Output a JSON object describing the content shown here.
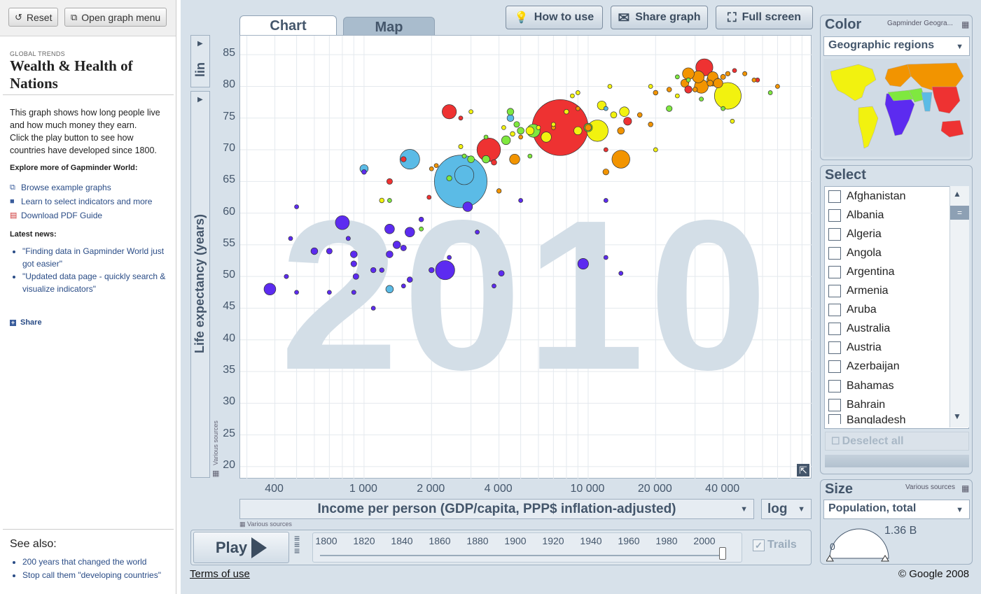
{
  "sidebar": {
    "reset_label": "Reset",
    "menu_label": "Open graph menu",
    "global_trends": "GLOBAL TRENDS",
    "title_line1": "Wealth & Health of",
    "title_line2": "Nations",
    "desc_lines": [
      "This graph shows how long people live",
      "and how much money they earn.",
      "Click the play button to see how",
      "countries have developed since 1800."
    ],
    "explore": "Explore more of Gapminder World:",
    "links": [
      "Browse example graphs",
      "Learn to select indicators and more",
      "Download PDF Guide"
    ],
    "latest_news": "Latest news:",
    "news": [
      "\"Finding data in Gapminder World just got easier\"",
      "\"Updated data page - quickly search & visualize indicators\""
    ],
    "share": "Share",
    "see_also": "See also:",
    "see_also_links": [
      "200 years that changed the world",
      "Stop call them \"developing countries\""
    ]
  },
  "main": {
    "tabs": [
      {
        "label": "Chart"
      },
      {
        "label": "Map"
      }
    ],
    "buttons": {
      "how_to_use": "How to use",
      "share_graph": "Share graph",
      "full_screen": "Full screen"
    },
    "y_scale": "lin",
    "x_indicator": "Income per person (GDP/capita, PPP$ inflation-adjusted)",
    "x_scale": "log",
    "various_sources": "Various sources",
    "play": "Play",
    "trails": "Trails",
    "terms": "Terms of use",
    "copyright": "© Google 2008",
    "year_ticks": [
      "1800",
      "1820",
      "1840",
      "1860",
      "1880",
      "1900",
      "1920",
      "1940",
      "1960",
      "1980",
      "2000"
    ]
  },
  "right": {
    "color_title": "Color",
    "color_source": "Gapminder Geogra...",
    "color_indicator": "Geographic regions",
    "select_title": "Select",
    "countries": [
      "Afghanistan",
      "Albania",
      "Algeria",
      "Angola",
      "Argentina",
      "Armenia",
      "Aruba",
      "Australia",
      "Austria",
      "Azerbaijan",
      "Bahamas",
      "Bahrain",
      "Bangladesh"
    ],
    "deselect_all": "Deselect all",
    "size_title": "Size",
    "size_source": "Various sources",
    "size_indicator": "Population, total",
    "size_max": "1.36 B",
    "size_min": "0"
  },
  "chart_data": {
    "type": "scatter",
    "year_watermark": "2010",
    "xlabel": "Income per person (GDP/capita, PPP$ inflation-adjusted)",
    "ylabel": "Life expectancy (years)",
    "x_scale": "log",
    "xlim": [
      280,
      100000
    ],
    "ylim": [
      18,
      88
    ],
    "x_ticks": [
      {
        "v": 400,
        "label": "400"
      },
      {
        "v": 1000,
        "label": "1 000"
      },
      {
        "v": 2000,
        "label": "2 000"
      },
      {
        "v": 4000,
        "label": "4 000"
      },
      {
        "v": 10000,
        "label": "10 000"
      },
      {
        "v": 20000,
        "label": "20 000"
      },
      {
        "v": 40000,
        "label": "40 000"
      }
    ],
    "y_ticks": [
      20,
      25,
      30,
      35,
      40,
      45,
      50,
      55,
      60,
      65,
      70,
      75,
      80,
      85
    ],
    "region_colors": {
      "africa": "#5c2bf0",
      "south_asia": "#5bbbe6",
      "east_asia": "#ee3232",
      "europe": "#f29400",
      "america": "#f2f20f",
      "middle_east": "#7fe83f"
    },
    "points": [
      {
        "r": "south_asia",
        "x": 2700,
        "y": 65,
        "p": 1200
      },
      {
        "r": "east_asia",
        "x": 7500,
        "y": 73.5,
        "p": 1360
      },
      {
        "r": "america",
        "x": 42000,
        "y": 78.5,
        "p": 310
      },
      {
        "r": "east_asia",
        "x": 3600,
        "y": 70,
        "p": 240
      },
      {
        "r": "south_asia",
        "x": 1600,
        "y": 68.5,
        "p": 170
      },
      {
        "r": "america",
        "x": 11000,
        "y": 73,
        "p": 200
      },
      {
        "r": "europe",
        "x": 14000,
        "y": 68.5,
        "p": 140
      },
      {
        "r": "africa",
        "x": 2300,
        "y": 51,
        "p": 160
      },
      {
        "r": "south_asia",
        "x": 2800,
        "y": 66,
        "p": 160
      },
      {
        "r": "east_asia",
        "x": 33000,
        "y": 83,
        "p": 127
      },
      {
        "r": "east_asia",
        "x": 2400,
        "y": 76,
        "p": 88
      },
      {
        "r": "africa",
        "x": 800,
        "y": 58.5,
        "p": 85
      },
      {
        "r": "africa",
        "x": 9500,
        "y": 52,
        "p": 50
      },
      {
        "r": "africa",
        "x": 1600,
        "y": 57,
        "p": 40
      },
      {
        "r": "africa",
        "x": 1300,
        "y": 57.5,
        "p": 40
      },
      {
        "r": "africa",
        "x": 380,
        "y": 48,
        "p": 60
      },
      {
        "r": "africa",
        "x": 2900,
        "y": 61,
        "p": 40
      },
      {
        "r": "middle_east",
        "x": 5700,
        "y": 73,
        "p": 75
      },
      {
        "r": "europe",
        "x": 32000,
        "y": 80,
        "p": 82
      },
      {
        "r": "europe",
        "x": 36000,
        "y": 81,
        "p": 62
      },
      {
        "r": "europe",
        "x": 31000,
        "y": 81.5,
        "p": 61
      },
      {
        "r": "europe",
        "x": 28000,
        "y": 82,
        "p": 60
      },
      {
        "r": "europe",
        "x": 4700,
        "y": 68.5,
        "p": 45
      },
      {
        "r": "america",
        "x": 6500,
        "y": 72,
        "p": 45
      },
      {
        "r": "america",
        "x": 5500,
        "y": 73,
        "p": 29
      },
      {
        "r": "america",
        "x": 14500,
        "y": 76,
        "p": 40
      },
      {
        "r": "america",
        "x": 11500,
        "y": 77,
        "p": 34
      },
      {
        "r": "america",
        "x": 13000,
        "y": 75.5,
        "p": 17
      },
      {
        "r": "america",
        "x": 9000,
        "y": 73,
        "p": 29
      },
      {
        "r": "middle_east",
        "x": 4300,
        "y": 71.5,
        "p": 34
      },
      {
        "r": "middle_east",
        "x": 5000,
        "y": 73,
        "p": 20
      },
      {
        "r": "middle_east",
        "x": 10000,
        "y": 73.5,
        "p": 32
      },
      {
        "r": "middle_east",
        "x": 3000,
        "y": 68.5,
        "p": 20
      },
      {
        "r": "middle_east",
        "x": 3500,
        "y": 68.5,
        "p": 25
      },
      {
        "r": "east_asia",
        "x": 3800,
        "y": 68,
        "p": 13
      },
      {
        "r": "east_asia",
        "x": 2700,
        "y": 75,
        "p": 3
      },
      {
        "r": "east_asia",
        "x": 1950,
        "y": 62.5,
        "p": 7
      },
      {
        "r": "east_asia",
        "x": 1300,
        "y": 65,
        "p": 14
      },
      {
        "r": "east_asia",
        "x": 1500,
        "y": 68.5,
        "p": 12
      },
      {
        "r": "east_asia",
        "x": 12000,
        "y": 70,
        "p": 4
      },
      {
        "r": "east_asia",
        "x": 57000,
        "y": 81,
        "p": 5
      },
      {
        "r": "east_asia",
        "x": 45000,
        "y": 82.5,
        "p": 7
      },
      {
        "r": "east_asia",
        "x": 28000,
        "y": 79.5,
        "p": 23
      },
      {
        "r": "east_asia",
        "x": 15000,
        "y": 74.5,
        "p": 28
      },
      {
        "r": "south_asia",
        "x": 1000,
        "y": 67,
        "p": 30
      },
      {
        "r": "south_asia",
        "x": 1300,
        "y": 48,
        "p": 25
      },
      {
        "r": "south_asia",
        "x": 4500,
        "y": 75,
        "p": 20
      },
      {
        "r": "south_asia",
        "x": 12000,
        "y": 76.5,
        "p": 0.4
      },
      {
        "r": "europe",
        "x": 38000,
        "y": 80.5,
        "p": 38
      },
      {
        "r": "europe",
        "x": 36000,
        "y": 81.5,
        "p": 47
      },
      {
        "r": "europe",
        "x": 27000,
        "y": 80.5,
        "p": 28
      },
      {
        "r": "europe",
        "x": 40000,
        "y": 81.5,
        "p": 11
      },
      {
        "r": "europe",
        "x": 35000,
        "y": 80.5,
        "p": 16
      },
      {
        "r": "europe",
        "x": 30000,
        "y": 79.5,
        "p": 10
      },
      {
        "r": "europe",
        "x": 55000,
        "y": 81,
        "p": 5
      },
      {
        "r": "europe",
        "x": 42000,
        "y": 82,
        "p": 9
      },
      {
        "r": "europe",
        "x": 50000,
        "y": 82,
        "p": 8
      },
      {
        "r": "europe",
        "x": 17000,
        "y": 75.5,
        "p": 10
      },
      {
        "r": "europe",
        "x": 20000,
        "y": 79,
        "p": 10
      },
      {
        "r": "europe",
        "x": 23000,
        "y": 79.5,
        "p": 10
      },
      {
        "r": "europe",
        "x": 19000,
        "y": 74,
        "p": 10
      },
      {
        "r": "europe",
        "x": 14000,
        "y": 73,
        "p": 20
      },
      {
        "r": "europe",
        "x": 10000,
        "y": 73.5,
        "p": 18
      },
      {
        "r": "europe",
        "x": 12000,
        "y": 66.5,
        "p": 16
      },
      {
        "r": "europe",
        "x": 4000,
        "y": 63.5,
        "p": 9
      },
      {
        "r": "europe",
        "x": 2000,
        "y": 67,
        "p": 4
      },
      {
        "r": "europe",
        "x": 2100,
        "y": 67.5,
        "p": 3
      },
      {
        "r": "europe",
        "x": 5000,
        "y": 72,
        "p": 3
      },
      {
        "r": "europe",
        "x": 7000,
        "y": 73.5,
        "p": 7
      },
      {
        "r": "europe",
        "x": 70000,
        "y": 80,
        "p": 2
      },
      {
        "r": "europe",
        "x": 9000,
        "y": 76.5,
        "p": 4
      },
      {
        "r": "america",
        "x": 4600,
        "y": 72.5,
        "p": 10
      },
      {
        "r": "america",
        "x": 8000,
        "y": 76,
        "p": 10
      },
      {
        "r": "america",
        "x": 9000,
        "y": 79,
        "p": 4
      },
      {
        "r": "america",
        "x": 12500,
        "y": 80,
        "p": 2
      },
      {
        "r": "america",
        "x": 1200,
        "y": 62,
        "p": 10
      },
      {
        "r": "america",
        "x": 3000,
        "y": 76,
        "p": 7
      },
      {
        "r": "america",
        "x": 8500,
        "y": 78.5,
        "p": 3
      },
      {
        "r": "america",
        "x": 19000,
        "y": 80,
        "p": 3
      },
      {
        "r": "america",
        "x": 25000,
        "y": 78.5,
        "p": 0.5
      },
      {
        "r": "america",
        "x": 7000,
        "y": 74,
        "p": 7
      },
      {
        "r": "america",
        "x": 6000,
        "y": 73.5,
        "p": 6
      },
      {
        "r": "america",
        "x": 4200,
        "y": 73.5,
        "p": 5
      },
      {
        "r": "america",
        "x": 2700,
        "y": 70.5,
        "p": 8
      },
      {
        "r": "america",
        "x": 20000,
        "y": 70,
        "p": 1
      },
      {
        "r": "america",
        "x": 44000,
        "y": 74.5,
        "p": 1
      },
      {
        "r": "middle_east",
        "x": 23000,
        "y": 76.5,
        "p": 15
      },
      {
        "r": "middle_east",
        "x": 25000,
        "y": 81.5,
        "p": 7
      },
      {
        "r": "middle_east",
        "x": 28000,
        "y": 81,
        "p": 4
      },
      {
        "r": "middle_east",
        "x": 5500,
        "y": 69,
        "p": 6
      },
      {
        "r": "middle_east",
        "x": 4800,
        "y": 74,
        "p": 14
      },
      {
        "r": "middle_east",
        "x": 3500,
        "y": 72,
        "p": 6
      },
      {
        "r": "middle_east",
        "x": 2800,
        "y": 69,
        "p": 8
      },
      {
        "r": "middle_east",
        "x": 4500,
        "y": 76,
        "p": 20
      },
      {
        "r": "middle_east",
        "x": 2400,
        "y": 65.5,
        "p": 12
      },
      {
        "r": "middle_east",
        "x": 1800,
        "y": 57.5,
        "p": 2
      },
      {
        "r": "middle_east",
        "x": 1300,
        "y": 62,
        "p": 6
      },
      {
        "r": "middle_east",
        "x": 40000,
        "y": 76.5,
        "p": 4
      },
      {
        "r": "middle_east",
        "x": 65000,
        "y": 79,
        "p": 1
      },
      {
        "r": "middle_east",
        "x": 32000,
        "y": 78,
        "p": 1
      },
      {
        "r": "africa",
        "x": 600,
        "y": 54,
        "p": 20
      },
      {
        "r": "africa",
        "x": 900,
        "y": 53.5,
        "p": 20
      },
      {
        "r": "africa",
        "x": 1400,
        "y": 55,
        "p": 25
      },
      {
        "r": "africa",
        "x": 1500,
        "y": 54.5,
        "p": 14
      },
      {
        "r": "africa",
        "x": 900,
        "y": 52,
        "p": 15
      },
      {
        "r": "africa",
        "x": 920,
        "y": 50,
        "p": 14
      },
      {
        "r": "africa",
        "x": 1100,
        "y": 51,
        "p": 12
      },
      {
        "r": "africa",
        "x": 1300,
        "y": 53.5,
        "p": 20
      },
      {
        "r": "africa",
        "x": 1600,
        "y": 49.5,
        "p": 13
      },
      {
        "r": "africa",
        "x": 2000,
        "y": 51,
        "p": 12
      },
      {
        "r": "africa",
        "x": 4100,
        "y": 50.5,
        "p": 14
      },
      {
        "r": "africa",
        "x": 12000,
        "y": 62,
        "p": 2
      },
      {
        "r": "africa",
        "x": 12000,
        "y": 53,
        "p": 2
      },
      {
        "r": "africa",
        "x": 14000,
        "y": 50.5,
        "p": 1
      },
      {
        "r": "africa",
        "x": 3800,
        "y": 48.5,
        "p": 2
      },
      {
        "r": "africa",
        "x": 3200,
        "y": 57,
        "p": 4
      },
      {
        "r": "africa",
        "x": 5000,
        "y": 62,
        "p": 3
      },
      {
        "r": "africa",
        "x": 1500,
        "y": 48.5,
        "p": 6
      },
      {
        "r": "africa",
        "x": 1000,
        "y": 66.5,
        "p": 10
      },
      {
        "r": "africa",
        "x": 500,
        "y": 61,
        "p": 7
      },
      {
        "r": "africa",
        "x": 450,
        "y": 50,
        "p": 8
      },
      {
        "r": "africa",
        "x": 470,
        "y": 56,
        "p": 6
      },
      {
        "r": "africa",
        "x": 500,
        "y": 47.5,
        "p": 4
      },
      {
        "r": "africa",
        "x": 700,
        "y": 47.5,
        "p": 6
      },
      {
        "r": "africa",
        "x": 900,
        "y": 47.5,
        "p": 8
      },
      {
        "r": "africa",
        "x": 1800,
        "y": 59,
        "p": 10
      },
      {
        "r": "africa",
        "x": 1200,
        "y": 51,
        "p": 9
      },
      {
        "r": "africa",
        "x": 850,
        "y": 56,
        "p": 8
      },
      {
        "r": "africa",
        "x": 2400,
        "y": 53,
        "p": 3
      },
      {
        "r": "africa",
        "x": 1100,
        "y": 45,
        "p": 4
      },
      {
        "r": "africa",
        "x": 700,
        "y": 54,
        "p": 14
      }
    ]
  }
}
